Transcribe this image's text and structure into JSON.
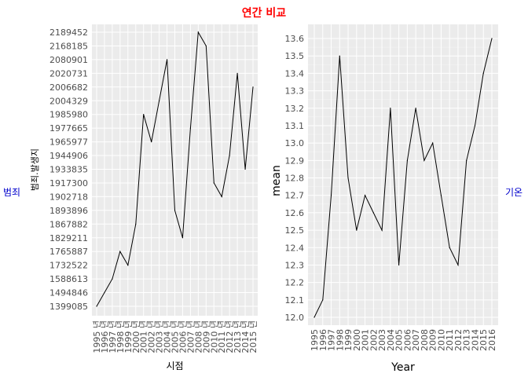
{
  "title": "연간 비교",
  "side_label_left": "범죄",
  "side_label_right": "기온",
  "chart_data": [
    {
      "type": "line",
      "xlabel": "시점",
      "ylabel": "범죄.발생지",
      "x": [
        "1995 년",
        "1996 년",
        "1997 년",
        "1998 년",
        "1999 년",
        "2000 년",
        "2001 년",
        "2002 년",
        "2003 년",
        "2004 년",
        "2005 년",
        "2006 년",
        "2007 년",
        "2008 년",
        "2009 년",
        "2010 년",
        "2011 년",
        "2012 년",
        "2013 년",
        "2014 년",
        "2015 년"
      ],
      "y_categories": [
        "1399085",
        "1494846",
        "1588613",
        "1732522",
        "1765887",
        "1829211",
        "1867882",
        "1893896",
        "1902718",
        "1917300",
        "1933835",
        "1944906",
        "1965977",
        "1977665",
        "1985980",
        "2004329",
        "2006682",
        "2020731",
        "2080901",
        "2168185",
        "2189452"
      ],
      "values": [
        "1399085",
        "1494846",
        "1588613",
        "1765887",
        "1732522",
        "1867882",
        "1985980",
        "1965977",
        "2004329",
        "2080901",
        "1893896",
        "1829211",
        "1977665",
        "2189452",
        "2168185",
        "1917300",
        "1902718",
        "1944906",
        "2020731",
        "1933835",
        "2006682"
      ],
      "grid": true
    },
    {
      "type": "line",
      "xlabel": "Year",
      "ylabel": "mean",
      "x": [
        1995,
        1996,
        1997,
        1998,
        1999,
        2000,
        2001,
        2002,
        2003,
        2004,
        2005,
        2006,
        2007,
        2008,
        2009,
        2010,
        2011,
        2012,
        2013,
        2014,
        2015,
        2016
      ],
      "y_ticks": [
        12.0,
        12.1,
        12.2,
        12.3,
        12.4,
        12.5,
        12.6,
        12.7,
        12.8,
        12.9,
        13.0,
        13.1,
        13.2,
        13.3,
        13.4,
        13.5,
        13.6
      ],
      "ylim": [
        12.0,
        13.6
      ],
      "values": [
        12.0,
        12.1,
        12.7,
        13.5,
        12.8,
        12.5,
        12.7,
        12.6,
        12.5,
        13.2,
        12.3,
        12.9,
        13.2,
        12.9,
        13.0,
        12.7,
        12.4,
        12.3,
        12.9,
        13.1,
        13.4,
        13.6
      ],
      "grid": true
    }
  ]
}
